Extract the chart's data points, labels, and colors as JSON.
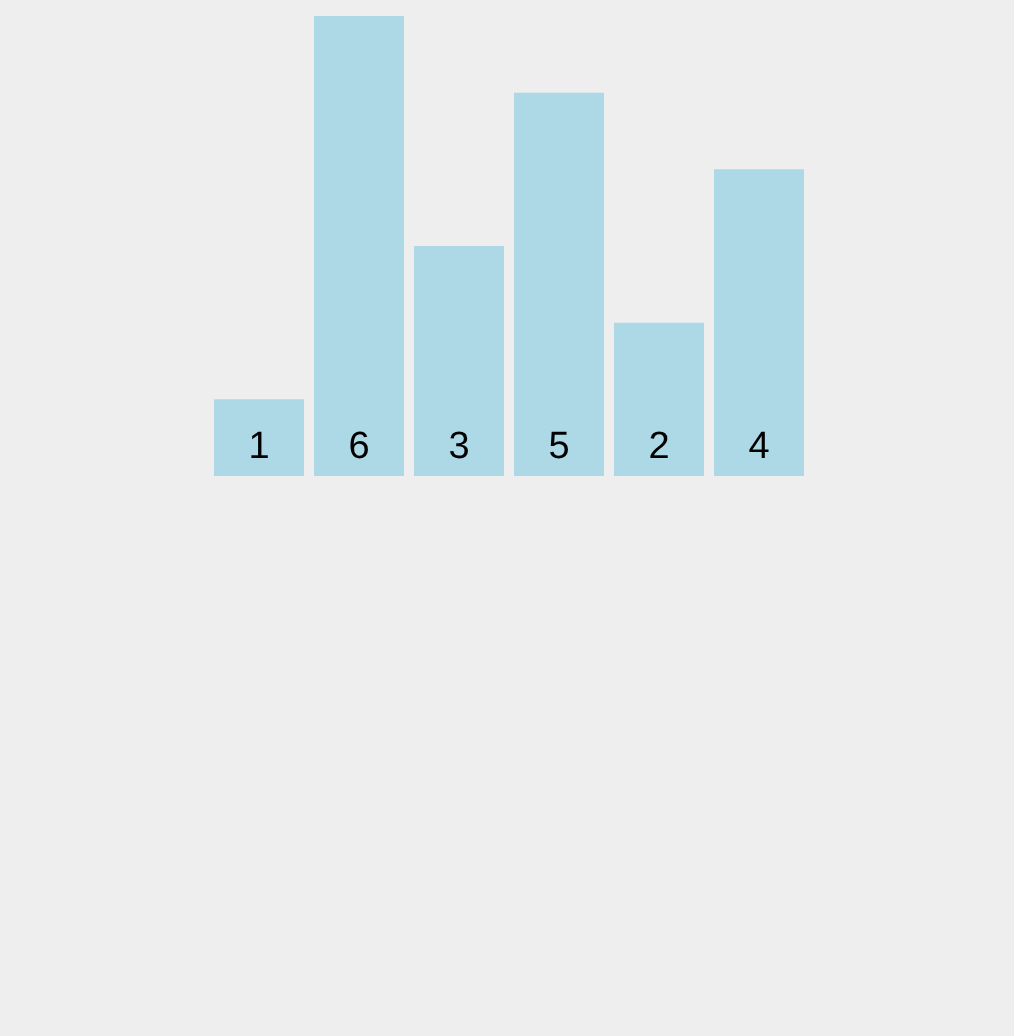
{
  "chart_data": {
    "type": "bar",
    "categories": [
      null,
      null,
      null,
      null,
      null,
      null
    ],
    "values": [
      1,
      6,
      3,
      5,
      2,
      4
    ],
    "color": "#add8e6",
    "data_labels": true,
    "grid": false,
    "legend": false,
    "tick_labels": false
  }
}
